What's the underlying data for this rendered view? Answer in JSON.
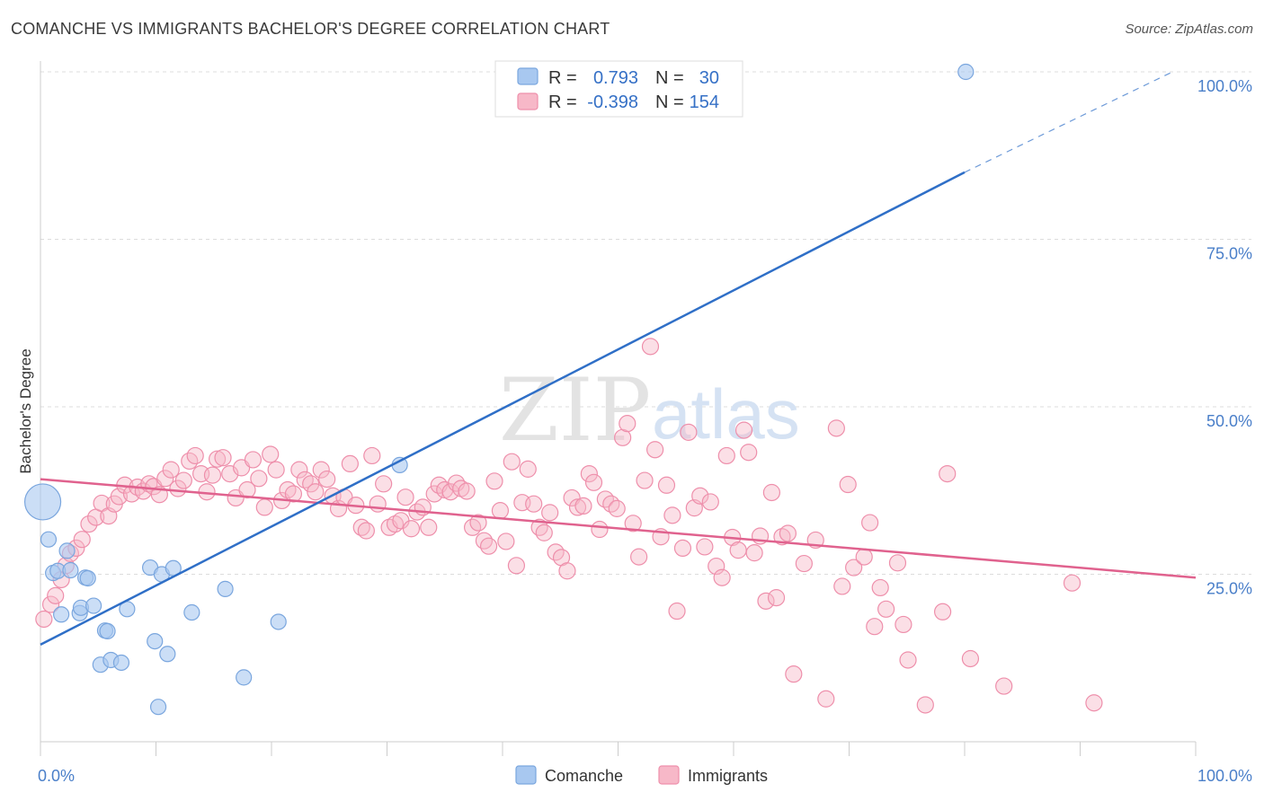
{
  "title": "COMANCHE VS IMMIGRANTS BACHELOR'S DEGREE CORRELATION CHART",
  "source": "Source: ZipAtlas.com",
  "watermark": {
    "zip": "ZIP",
    "atlas": "atlas"
  },
  "colors": {
    "comanche_fill": "#a8c8f0",
    "comanche_stroke": "#7aa6de",
    "comanche_line": "#2f6fc7",
    "immigrants_fill": "#f7b8c8",
    "immigrants_stroke": "#ee8fab",
    "immigrants_line": "#e0628e",
    "grid": "#dddddd",
    "tick_label": "#4a7fc9"
  },
  "legend": {
    "rows": [
      {
        "r_label": "R =",
        "r_value": "0.793",
        "n_label": "N =",
        "n_value": "30"
      },
      {
        "r_label": "R =",
        "r_value": "-0.398",
        "n_label": "N =",
        "n_value": "154"
      }
    ]
  },
  "chart_data": {
    "type": "scatter",
    "ylabel": "Bachelor's Degree",
    "xlim": [
      0,
      100
    ],
    "ylim": [
      0,
      100
    ],
    "x_tick_labels": [
      "0.0%",
      "100.0%"
    ],
    "y_ticks": [
      {
        "value": 25,
        "label": "25.0%"
      },
      {
        "value": 50,
        "label": "50.0%"
      },
      {
        "value": 75,
        "label": "75.0%"
      },
      {
        "value": 100,
        "label": "100.0%"
      }
    ],
    "grid": true,
    "legend_position": "bottom-center",
    "series": [
      {
        "name": "Comanche",
        "trend": {
          "x0": 0,
          "y0": 14.5,
          "x1": 80,
          "y1": 85,
          "dashed_to_x": 98,
          "dashed_to_y": 100
        },
        "points": [
          {
            "x": 0.2,
            "y": 35.8,
            "big": true
          },
          {
            "x": 0.7,
            "y": 30.2
          },
          {
            "x": 1.1,
            "y": 25.2
          },
          {
            "x": 1.5,
            "y": 25.5
          },
          {
            "x": 1.8,
            "y": 19.0
          },
          {
            "x": 2.3,
            "y": 28.5
          },
          {
            "x": 2.6,
            "y": 25.6
          },
          {
            "x": 3.4,
            "y": 19.2
          },
          {
            "x": 3.5,
            "y": 20.0
          },
          {
            "x": 3.9,
            "y": 24.5
          },
          {
            "x": 4.1,
            "y": 24.4
          },
          {
            "x": 4.6,
            "y": 20.3
          },
          {
            "x": 5.2,
            "y": 11.5
          },
          {
            "x": 5.6,
            "y": 16.6
          },
          {
            "x": 5.8,
            "y": 16.5
          },
          {
            "x": 6.1,
            "y": 12.2
          },
          {
            "x": 7.0,
            "y": 11.8
          },
          {
            "x": 7.5,
            "y": 19.8
          },
          {
            "x": 9.5,
            "y": 26.0
          },
          {
            "x": 9.9,
            "y": 15.0
          },
          {
            "x": 10.2,
            "y": 5.2
          },
          {
            "x": 10.5,
            "y": 25.0
          },
          {
            "x": 11.0,
            "y": 13.1
          },
          {
            "x": 11.5,
            "y": 25.9
          },
          {
            "x": 13.1,
            "y": 19.3
          },
          {
            "x": 16.0,
            "y": 22.8
          },
          {
            "x": 17.6,
            "y": 9.6
          },
          {
            "x": 20.6,
            "y": 17.9
          },
          {
            "x": 31.1,
            "y": 41.3
          },
          {
            "x": 80.1,
            "y": 100.0
          }
        ]
      },
      {
        "name": "Immigrants",
        "trend": {
          "x0": 0,
          "y0": 39.2,
          "x1": 100,
          "y1": 24.5
        },
        "points": [
          {
            "x": 0.3,
            "y": 18.3
          },
          {
            "x": 0.9,
            "y": 20.5
          },
          {
            "x": 1.3,
            "y": 21.8
          },
          {
            "x": 1.8,
            "y": 24.2
          },
          {
            "x": 2.2,
            "y": 26.3
          },
          {
            "x": 2.6,
            "y": 28.1
          },
          {
            "x": 3.1,
            "y": 28.9
          },
          {
            "x": 3.6,
            "y": 30.2
          },
          {
            "x": 4.2,
            "y": 32.5
          },
          {
            "x": 4.8,
            "y": 33.5
          },
          {
            "x": 5.3,
            "y": 35.6
          },
          {
            "x": 5.9,
            "y": 33.7
          },
          {
            "x": 6.4,
            "y": 35.5
          },
          {
            "x": 6.8,
            "y": 36.6
          },
          {
            "x": 7.3,
            "y": 38.3
          },
          {
            "x": 7.9,
            "y": 37.0
          },
          {
            "x": 8.4,
            "y": 38.0
          },
          {
            "x": 8.9,
            "y": 37.4
          },
          {
            "x": 9.4,
            "y": 38.5
          },
          {
            "x": 9.8,
            "y": 38.1
          },
          {
            "x": 10.3,
            "y": 36.9
          },
          {
            "x": 10.8,
            "y": 39.3
          },
          {
            "x": 11.3,
            "y": 40.6
          },
          {
            "x": 11.9,
            "y": 37.8
          },
          {
            "x": 12.4,
            "y": 39.0
          },
          {
            "x": 12.9,
            "y": 41.9
          },
          {
            "x": 13.4,
            "y": 42.7
          },
          {
            "x": 13.9,
            "y": 40.0
          },
          {
            "x": 14.4,
            "y": 37.3
          },
          {
            "x": 14.9,
            "y": 39.8
          },
          {
            "x": 15.3,
            "y": 42.2
          },
          {
            "x": 15.8,
            "y": 42.4
          },
          {
            "x": 16.4,
            "y": 40.0
          },
          {
            "x": 16.9,
            "y": 36.4
          },
          {
            "x": 17.4,
            "y": 40.9
          },
          {
            "x": 17.9,
            "y": 37.6
          },
          {
            "x": 18.4,
            "y": 42.1
          },
          {
            "x": 18.9,
            "y": 39.3
          },
          {
            "x": 19.4,
            "y": 35.0
          },
          {
            "x": 19.9,
            "y": 42.9
          },
          {
            "x": 20.4,
            "y": 40.6
          },
          {
            "x": 20.9,
            "y": 36.0
          },
          {
            "x": 21.4,
            "y": 37.6
          },
          {
            "x": 21.9,
            "y": 37.0
          },
          {
            "x": 22.4,
            "y": 40.6
          },
          {
            "x": 22.9,
            "y": 39.1
          },
          {
            "x": 23.4,
            "y": 38.5
          },
          {
            "x": 23.8,
            "y": 37.3
          },
          {
            "x": 24.3,
            "y": 40.6
          },
          {
            "x": 24.8,
            "y": 39.2
          },
          {
            "x": 25.3,
            "y": 36.7
          },
          {
            "x": 25.8,
            "y": 34.8
          },
          {
            "x": 26.3,
            "y": 36.5
          },
          {
            "x": 26.8,
            "y": 41.5
          },
          {
            "x": 27.3,
            "y": 35.3
          },
          {
            "x": 27.8,
            "y": 32.0
          },
          {
            "x": 28.2,
            "y": 31.5
          },
          {
            "x": 28.7,
            "y": 42.7
          },
          {
            "x": 29.2,
            "y": 35.5
          },
          {
            "x": 29.7,
            "y": 38.5
          },
          {
            "x": 30.2,
            "y": 32.0
          },
          {
            "x": 30.7,
            "y": 32.5
          },
          {
            "x": 31.2,
            "y": 33.0
          },
          {
            "x": 31.6,
            "y": 36.5
          },
          {
            "x": 32.1,
            "y": 31.8
          },
          {
            "x": 32.6,
            "y": 34.3
          },
          {
            "x": 33.1,
            "y": 35.0
          },
          {
            "x": 33.6,
            "y": 32.0
          },
          {
            "x": 34.1,
            "y": 37.0
          },
          {
            "x": 34.5,
            "y": 38.3
          },
          {
            "x": 35.0,
            "y": 37.6
          },
          {
            "x": 35.5,
            "y": 37.3
          },
          {
            "x": 36.0,
            "y": 38.6
          },
          {
            "x": 36.4,
            "y": 37.8
          },
          {
            "x": 36.9,
            "y": 37.4
          },
          {
            "x": 37.4,
            "y": 32.0
          },
          {
            "x": 37.9,
            "y": 32.7
          },
          {
            "x": 38.4,
            "y": 30.0
          },
          {
            "x": 38.8,
            "y": 29.2
          },
          {
            "x": 39.3,
            "y": 38.9
          },
          {
            "x": 39.8,
            "y": 34.5
          },
          {
            "x": 40.3,
            "y": 29.9
          },
          {
            "x": 40.8,
            "y": 41.8
          },
          {
            "x": 41.2,
            "y": 26.3
          },
          {
            "x": 41.7,
            "y": 35.7
          },
          {
            "x": 42.2,
            "y": 40.7
          },
          {
            "x": 42.7,
            "y": 35.5
          },
          {
            "x": 43.2,
            "y": 32.0
          },
          {
            "x": 43.6,
            "y": 31.2
          },
          {
            "x": 44.1,
            "y": 34.2
          },
          {
            "x": 44.6,
            "y": 28.3
          },
          {
            "x": 45.1,
            "y": 27.5
          },
          {
            "x": 45.6,
            "y": 25.5
          },
          {
            "x": 46.0,
            "y": 36.4
          },
          {
            "x": 46.5,
            "y": 35.0
          },
          {
            "x": 47.0,
            "y": 35.2
          },
          {
            "x": 47.5,
            "y": 40.0
          },
          {
            "x": 47.9,
            "y": 38.7
          },
          {
            "x": 48.4,
            "y": 31.7
          },
          {
            "x": 48.9,
            "y": 36.2
          },
          {
            "x": 49.4,
            "y": 35.5
          },
          {
            "x": 49.9,
            "y": 34.8
          },
          {
            "x": 50.4,
            "y": 45.4
          },
          {
            "x": 50.8,
            "y": 47.5
          },
          {
            "x": 51.3,
            "y": 32.6
          },
          {
            "x": 51.8,
            "y": 27.6
          },
          {
            "x": 52.3,
            "y": 39.0
          },
          {
            "x": 52.8,
            "y": 59.0
          },
          {
            "x": 53.2,
            "y": 43.6
          },
          {
            "x": 53.7,
            "y": 30.6
          },
          {
            "x": 54.2,
            "y": 38.3
          },
          {
            "x": 54.7,
            "y": 33.8
          },
          {
            "x": 55.1,
            "y": 19.5
          },
          {
            "x": 55.6,
            "y": 28.9
          },
          {
            "x": 56.1,
            "y": 46.2
          },
          {
            "x": 56.6,
            "y": 34.9
          },
          {
            "x": 57.1,
            "y": 36.7
          },
          {
            "x": 57.5,
            "y": 29.1
          },
          {
            "x": 58.0,
            "y": 35.8
          },
          {
            "x": 58.5,
            "y": 26.2
          },
          {
            "x": 59.0,
            "y": 24.5
          },
          {
            "x": 59.4,
            "y": 42.7
          },
          {
            "x": 59.9,
            "y": 30.5
          },
          {
            "x": 60.4,
            "y": 28.6
          },
          {
            "x": 60.9,
            "y": 46.5
          },
          {
            "x": 61.3,
            "y": 43.2
          },
          {
            "x": 61.8,
            "y": 28.2
          },
          {
            "x": 62.3,
            "y": 30.7
          },
          {
            "x": 62.8,
            "y": 21.0
          },
          {
            "x": 63.3,
            "y": 37.2
          },
          {
            "x": 63.7,
            "y": 21.5
          },
          {
            "x": 64.2,
            "y": 30.6
          },
          {
            "x": 64.7,
            "y": 31.1
          },
          {
            "x": 65.2,
            "y": 10.1
          },
          {
            "x": 66.1,
            "y": 26.6
          },
          {
            "x": 67.1,
            "y": 30.1
          },
          {
            "x": 68.0,
            "y": 6.4
          },
          {
            "x": 68.9,
            "y": 46.8
          },
          {
            "x": 69.4,
            "y": 23.2
          },
          {
            "x": 69.9,
            "y": 38.4
          },
          {
            "x": 70.4,
            "y": 26.0
          },
          {
            "x": 71.3,
            "y": 27.6
          },
          {
            "x": 71.8,
            "y": 32.7
          },
          {
            "x": 72.2,
            "y": 17.2
          },
          {
            "x": 72.7,
            "y": 23.0
          },
          {
            "x": 73.2,
            "y": 19.8
          },
          {
            "x": 74.2,
            "y": 26.7
          },
          {
            "x": 74.7,
            "y": 17.5
          },
          {
            "x": 75.1,
            "y": 12.2
          },
          {
            "x": 76.6,
            "y": 5.5
          },
          {
            "x": 78.1,
            "y": 19.4
          },
          {
            "x": 78.5,
            "y": 40.0
          },
          {
            "x": 80.5,
            "y": 12.4
          },
          {
            "x": 83.4,
            "y": 8.3
          },
          {
            "x": 89.3,
            "y": 23.7
          },
          {
            "x": 91.2,
            "y": 5.8
          }
        ]
      }
    ]
  }
}
